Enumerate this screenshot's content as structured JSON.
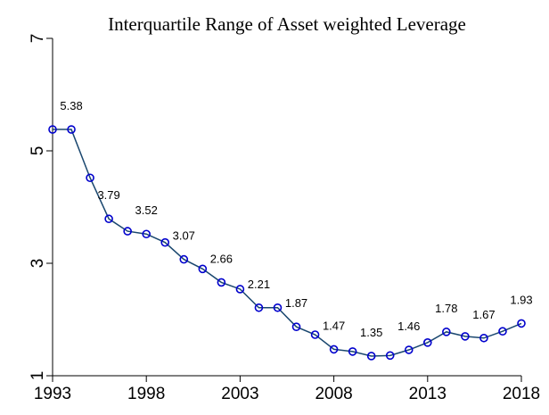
{
  "chart_data": {
    "type": "line",
    "title": "Interquartile Range of Asset weighted Leverage",
    "x": [
      1993,
      1994,
      1995,
      1996,
      1997,
      1998,
      1999,
      2000,
      2001,
      2002,
      2003,
      2004,
      2005,
      2006,
      2007,
      2008,
      2009,
      2010,
      2011,
      2012,
      2013,
      2014,
      2015,
      2016,
      2017,
      2018
    ],
    "series": [
      {
        "color": "#1a476f",
        "marker_color": "#0000cd",
        "values": [
          5.38,
          5.38,
          4.52,
          3.79,
          3.57,
          3.52,
          3.37,
          3.07,
          2.9,
          2.66,
          2.54,
          2.21,
          2.21,
          1.87,
          1.73,
          1.47,
          1.43,
          1.35,
          1.36,
          1.46,
          1.59,
          1.78,
          1.7,
          1.67,
          1.79,
          1.93
        ],
        "value_labels": [
          null,
          "5.38",
          null,
          "3.79",
          null,
          "3.52",
          null,
          "3.07",
          null,
          "2.66",
          null,
          "2.21",
          null,
          "1.87",
          null,
          "1.47",
          null,
          "1.35",
          null,
          "1.46",
          null,
          "1.78",
          null,
          "1.67",
          null,
          "1.93"
        ]
      }
    ],
    "xlim": [
      1993,
      2018
    ],
    "xticks": [
      1993,
      1998,
      2003,
      2008,
      2013,
      2018
    ],
    "ylim": [
      1,
      7
    ],
    "yticks": [
      1,
      3,
      5,
      7
    ]
  }
}
